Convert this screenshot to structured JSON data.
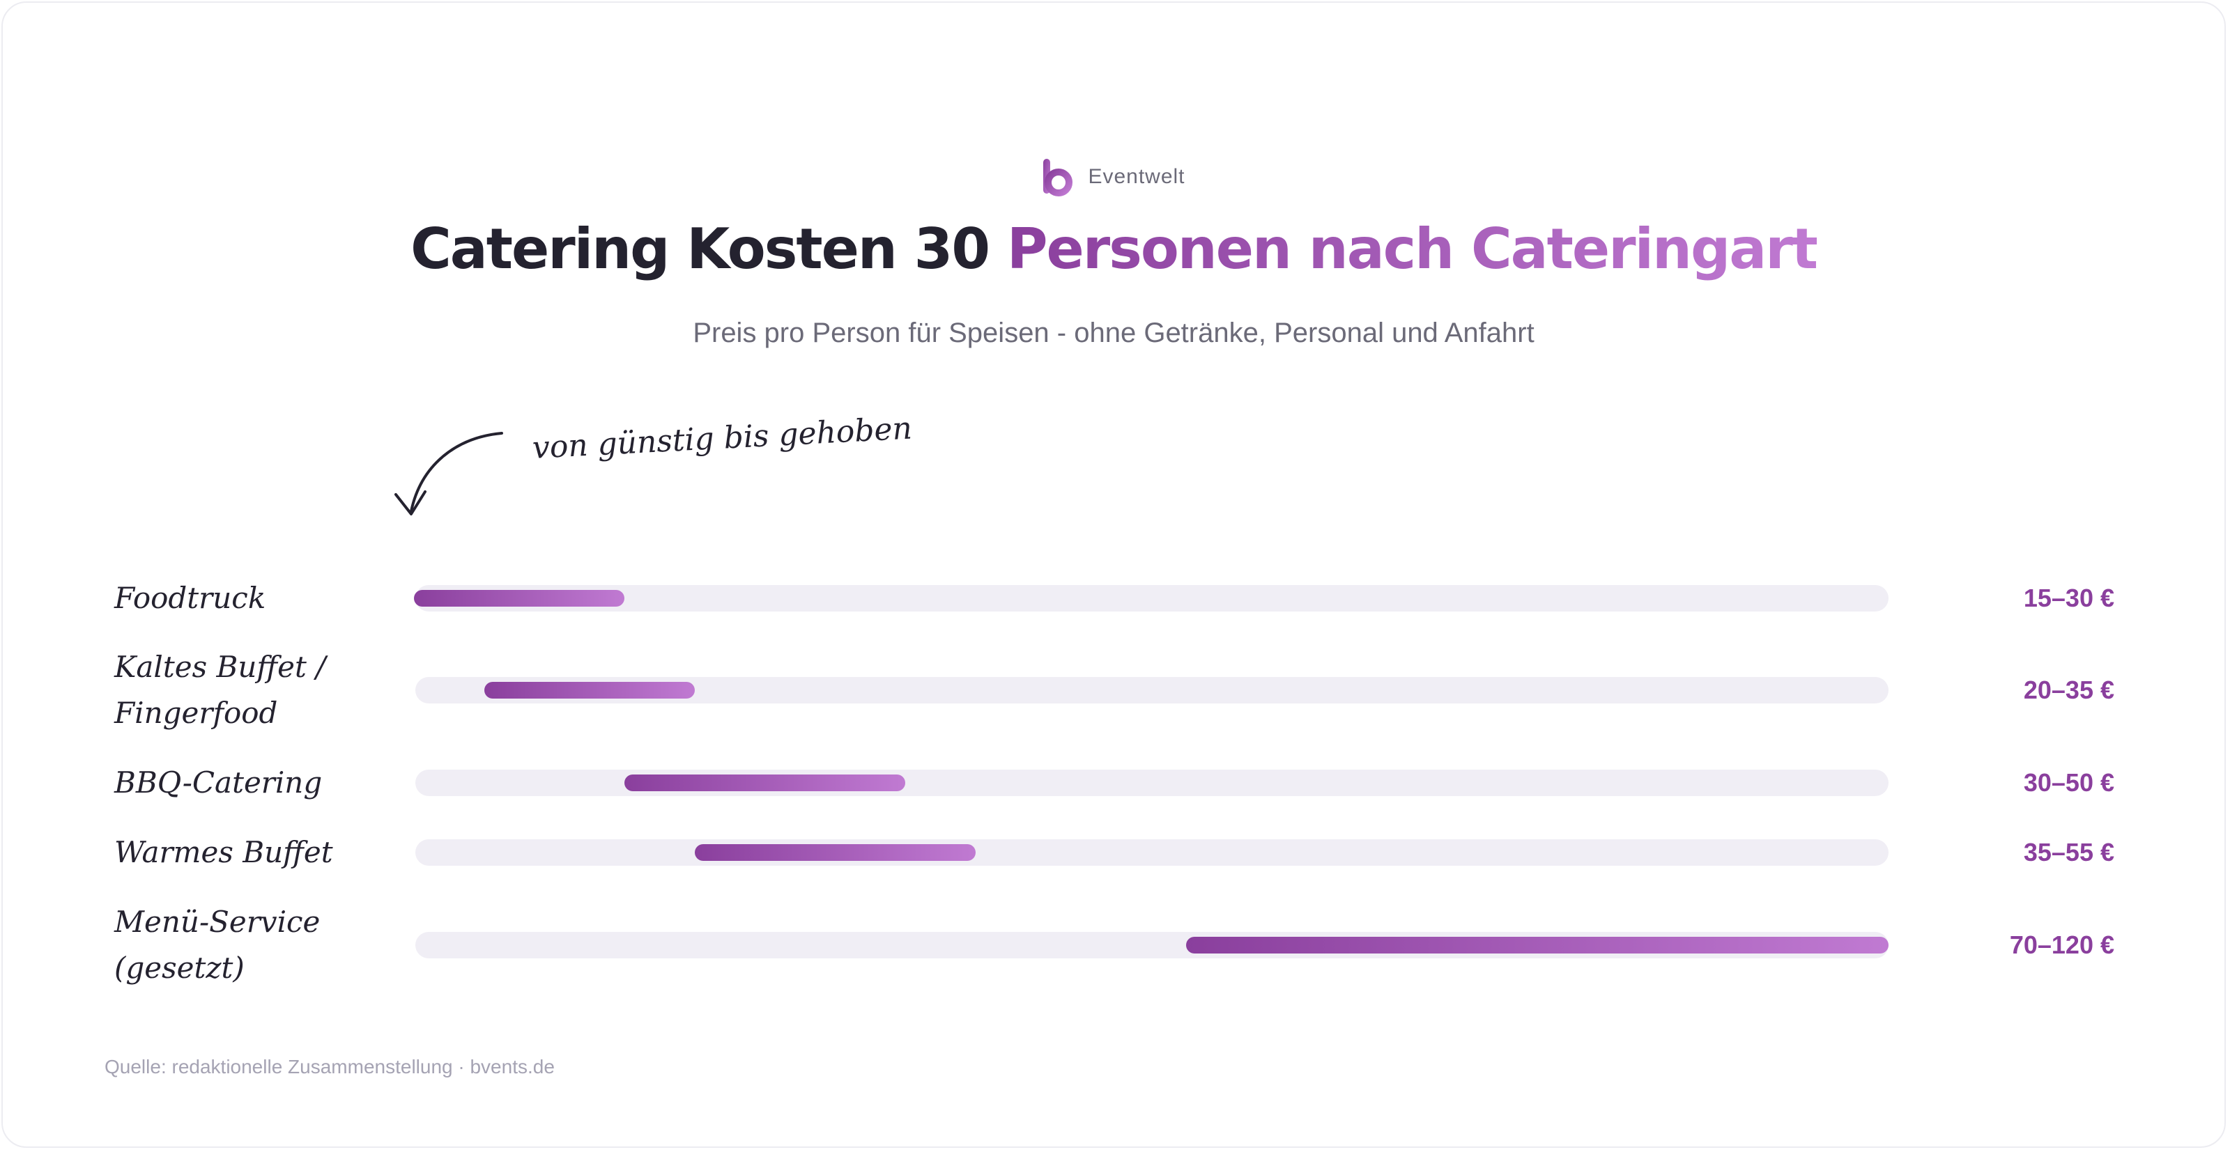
{
  "brand": {
    "name": "Eventwelt",
    "logo_icon": "bvents-b-logo-icon",
    "colors": {
      "accent_start": "#8a3f9d",
      "accent_end": "#c07ad2"
    }
  },
  "header": {
    "title_part1": "Catering Kosten 30 ",
    "title_part2": "Personen nach Cateringart",
    "subtitle": "Preis pro Person für Speisen - ohne Getränke, Personal und Anfahrt"
  },
  "annotation": {
    "text": "von günstig bis gehoben",
    "icon": "curved-arrow-down-left-icon"
  },
  "chart_data": {
    "type": "bar",
    "orientation": "horizontal-range",
    "unit": "€",
    "xlim": [
      15,
      120
    ],
    "grid": false,
    "colors": {
      "bar_start": "#8a3f9d",
      "bar_end": "#c07ad2",
      "track": "#f0eef5",
      "value_text": "#8a3f9d"
    },
    "categories": [
      {
        "label_lines": [
          "Foodtruck"
        ],
        "min": 15,
        "max": 30,
        "value_label": "15–30 €"
      },
      {
        "label_lines": [
          "Kaltes Buffet /",
          "Fingerfood"
        ],
        "min": 20,
        "max": 35,
        "value_label": "20–35 €"
      },
      {
        "label_lines": [
          "BBQ-Catering"
        ],
        "min": 30,
        "max": 50,
        "value_label": "30–50 €"
      },
      {
        "label_lines": [
          "Warmes Buffet"
        ],
        "min": 35,
        "max": 55,
        "value_label": "35–55 €"
      },
      {
        "label_lines": [
          "Menü-Service",
          "(gesetzt)"
        ],
        "min": 70,
        "max": 120,
        "value_label": "70–120 €"
      }
    ]
  },
  "footer": {
    "source": "Quelle: redaktionelle Zusammenstellung · bvents.de"
  }
}
